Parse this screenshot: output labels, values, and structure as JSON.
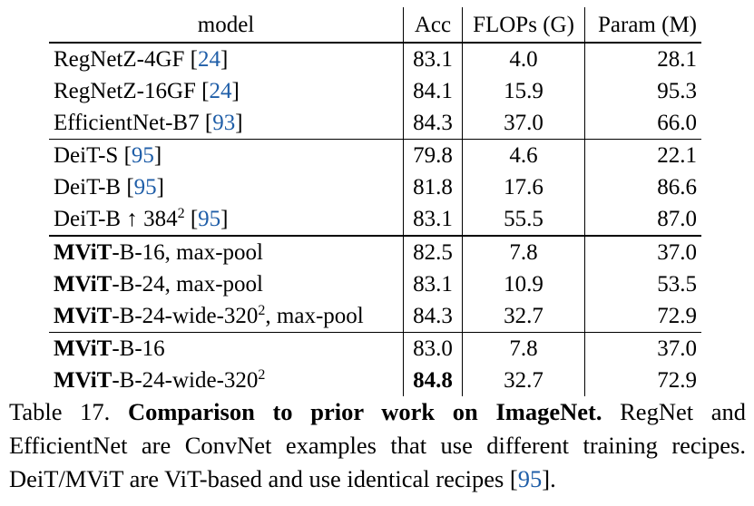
{
  "table": {
    "headers": {
      "model": "model",
      "acc": "Acc",
      "flops": "FLOPs (G)",
      "param": "Param (M)"
    },
    "rows": [
      {
        "bold": "",
        "name": "RegNetZ-4GF",
        "sup": "",
        "suffix": "",
        "ref": "24",
        "acc": "83.1",
        "flops": "4.0",
        "param": "28.1"
      },
      {
        "bold": "",
        "name": "RegNetZ-16GF",
        "sup": "",
        "suffix": "",
        "ref": "24",
        "acc": "84.1",
        "flops": "15.9",
        "param": "95.3"
      },
      {
        "bold": "",
        "name": "EfficientNet-B7",
        "sup": "",
        "suffix": "",
        "ref": "93",
        "acc": "84.3",
        "flops": "37.0",
        "param": "66.0"
      },
      {
        "bold": "",
        "name": "DeiT-S",
        "sup": "",
        "suffix": "",
        "ref": "95",
        "acc": "79.8",
        "flops": "4.6",
        "param": "22.1"
      },
      {
        "bold": "",
        "name": "DeiT-B",
        "sup": "",
        "suffix": "",
        "ref": "95",
        "acc": "81.8",
        "flops": "17.6",
        "param": "86.6"
      },
      {
        "bold": "",
        "name": "DeiT-B ↑ 384",
        "sup": "2",
        "suffix": "",
        "ref": "95",
        "acc": "83.1",
        "flops": "55.5",
        "param": "87.0"
      },
      {
        "bold": "MViT",
        "name": "-B-16, max-pool",
        "sup": "",
        "suffix": "",
        "ref": "",
        "acc": "82.5",
        "flops": "7.8",
        "param": "37.0"
      },
      {
        "bold": "MViT",
        "name": "-B-24, max-pool",
        "sup": "",
        "suffix": "",
        "ref": "",
        "acc": "83.1",
        "flops": "10.9",
        "param": "53.5"
      },
      {
        "bold": "MViT",
        "name": "-B-24-wide-320",
        "sup": "2",
        "suffix": ", max-pool",
        "ref": "",
        "acc": "84.3",
        "flops": "32.7",
        "param": "72.9"
      },
      {
        "bold": "MViT",
        "name": "-B-16",
        "sup": "",
        "suffix": "",
        "ref": "",
        "acc": "83.0",
        "flops": "7.8",
        "param": "37.0"
      },
      {
        "bold": "MViT",
        "name": "-B-24-wide-320",
        "sup": "2",
        "suffix": "",
        "ref": "",
        "acc": "84.8",
        "flops": "32.7",
        "param": "72.9"
      }
    ]
  },
  "caption": {
    "label": "Table 17.",
    "title": "Comparison to prior work on ImageNet",
    "title_end": ".",
    "body_before_ref": " RegNet and EfficientNet are ConvNet examples that use different training recipes. DeiT/MViT are ViT-based and use identical recipes [",
    "ref": "95",
    "body_after_ref": "]."
  }
}
